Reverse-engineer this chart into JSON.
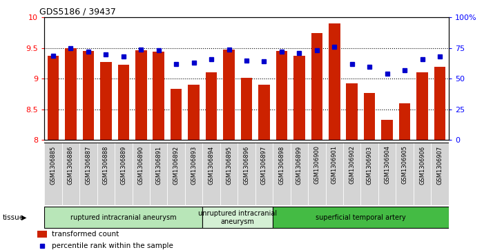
{
  "title": "GDS5186 / 39437",
  "samples": [
    "GSM1306885",
    "GSM1306886",
    "GSM1306887",
    "GSM1306888",
    "GSM1306889",
    "GSM1306890",
    "GSM1306891",
    "GSM1306892",
    "GSM1306893",
    "GSM1306894",
    "GSM1306895",
    "GSM1306896",
    "GSM1306897",
    "GSM1306898",
    "GSM1306899",
    "GSM1306900",
    "GSM1306901",
    "GSM1306902",
    "GSM1306903",
    "GSM1306904",
    "GSM1306905",
    "GSM1306906",
    "GSM1306907"
  ],
  "bar_values": [
    9.37,
    9.5,
    9.45,
    9.27,
    9.23,
    9.47,
    9.44,
    8.83,
    8.9,
    9.1,
    9.48,
    9.02,
    8.9,
    9.45,
    9.38,
    9.75,
    9.9,
    8.93,
    8.77,
    8.33,
    8.6,
    9.1,
    9.2
  ],
  "dot_values": [
    69,
    75,
    72,
    70,
    68,
    74,
    73,
    62,
    63,
    66,
    74,
    65,
    64,
    72,
    71,
    73,
    76,
    62,
    60,
    54,
    57,
    66,
    68
  ],
  "ylim_left": [
    8,
    10
  ],
  "ylim_right": [
    0,
    100
  ],
  "yticks_left": [
    8,
    8.5,
    9,
    9.5,
    10
  ],
  "yticks_right": [
    0,
    25,
    50,
    75,
    100
  ],
  "ytick_labels_right": [
    "0",
    "25",
    "50",
    "75",
    "100%"
  ],
  "bar_color": "#cc2200",
  "dot_color": "#0000cc",
  "plot_bg_color": "#ffffff",
  "xticklabel_bg": "#d0d0d0",
  "groups": [
    {
      "label": "ruptured intracranial aneurysm",
      "start": 0,
      "end": 9,
      "color": "#b8e6b8"
    },
    {
      "label": "unruptured intracranial\naneurysm",
      "start": 9,
      "end": 13,
      "color": "#d4f0d4"
    },
    {
      "label": "superficial temporal artery",
      "start": 13,
      "end": 23,
      "color": "#44bb44"
    }
  ],
  "tissue_label": "tissue",
  "legend_bar_label": "transformed count",
  "legend_dot_label": "percentile rank within the sample",
  "fig_width": 7.14,
  "fig_height": 3.63
}
